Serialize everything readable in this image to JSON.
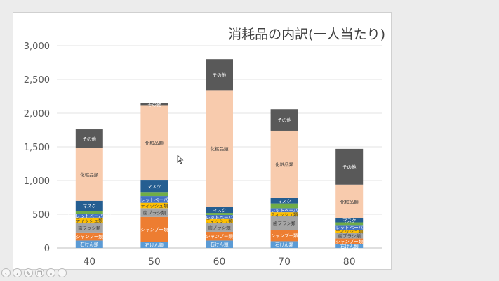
{
  "viewer": {
    "buttons": [
      {
        "name": "prev-slide-icon",
        "glyph": "‹"
      },
      {
        "name": "next-slide-icon",
        "glyph": "›"
      },
      {
        "name": "pen-icon",
        "glyph": "✎"
      },
      {
        "name": "copy-icon",
        "glyph": "❐"
      },
      {
        "name": "search-icon",
        "glyph": "⌕"
      },
      {
        "name": "more-icon",
        "glyph": "…"
      }
    ]
  },
  "chart_data": {
    "type": "bar",
    "stacked": true,
    "title": "消耗品の内訳(一人当たり)",
    "xlabel": "",
    "ylabel": "",
    "ylim": [
      0,
      3000
    ],
    "yticks": [
      0,
      500,
      1000,
      1500,
      2000,
      2500,
      3000
    ],
    "ytick_labels": [
      "0",
      "500",
      "1,000",
      "1,500",
      "2,000",
      "2,500",
      "3,000"
    ],
    "categories": [
      "40",
      "50",
      "60",
      "70",
      "80"
    ],
    "gridlines": true,
    "legend": "none",
    "series": [
      {
        "name": "石けん類",
        "color": "#5b9bd5",
        "values": [
          110,
          90,
          110,
          100,
          55
        ]
      },
      {
        "name": "シャンプー類",
        "color": "#ed7d31",
        "values": [
          120,
          370,
          130,
          170,
          85
        ]
      },
      {
        "name": "歯ブラシ類",
        "color": "#a5a5a5",
        "values": [
          140,
          130,
          130,
          200,
          85
        ]
      },
      {
        "name": "ティッシュ類",
        "color": "#ffc000",
        "values": [
          80,
          80,
          60,
          60,
          45
        ]
      },
      {
        "name": "トイレットペーパー類",
        "color": "#4472c4",
        "values": [
          60,
          100,
          60,
          60,
          70
        ]
      },
      {
        "name": "",
        "color": "#70ad47",
        "values": [
          40,
          50,
          30,
          70,
          40
        ]
      },
      {
        "name": "マスク",
        "color": "#255e91",
        "values": [
          150,
          190,
          90,
          80,
          60
        ]
      },
      {
        "name": "化粧品類",
        "color": "#f8cbad",
        "values": [
          780,
          1100,
          1730,
          1000,
          500
        ]
      },
      {
        "name": "その他",
        "color": "#595959",
        "values": [
          280,
          40,
          460,
          320,
          530
        ]
      }
    ],
    "segment_labels": [
      [
        "石けん類",
        "シャンプー類",
        "歯ブラシ類",
        "ティッシュ類",
        "トイレットペーパー類",
        "",
        "マスク",
        "化粧品類",
        "その他"
      ],
      [
        "石けん類",
        "シャンプー類",
        "歯ブラシ類",
        "ティッシュ類",
        "トイレットペーパー類",
        "",
        "マスク",
        "化粧品類",
        "その他"
      ],
      [
        "石けん類",
        "シャンプー類",
        "歯ブラシ類",
        "ティッシュ類",
        "トイレットペーパー類",
        "",
        "マスク",
        "化粧品類",
        "その他"
      ],
      [
        "石けん類",
        "シャンプー類",
        "歯ブラシ類",
        "ティッシュ類",
        "トイレットペーパー類",
        "",
        "マスク",
        "化粧品類",
        "その他"
      ],
      [
        "石けん類",
        "シャンプー類",
        "歯ブラシ類",
        "ティッシュ類",
        "トイレットペーパー類",
        "",
        "マスク",
        "化粧品類",
        "その他"
      ]
    ]
  }
}
